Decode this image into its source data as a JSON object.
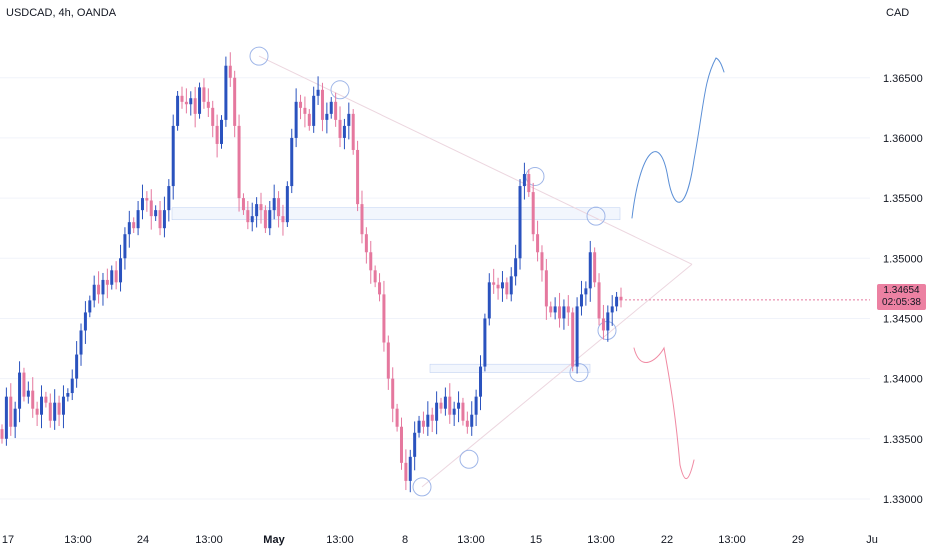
{
  "header": {
    "symbol": "USDCAD, 4h, OANDA",
    "currency": "CAD"
  },
  "price_tag": {
    "price": "1.34654",
    "countdown": "02:05:38"
  },
  "colors": {
    "up": "#2a52be",
    "down": "#e5789e",
    "grid": "#f0f3fa",
    "text": "#131722",
    "price_tag_bg": "#ec81a2",
    "projection_up": "#5b8fd6",
    "projection_down": "#f08aa3"
  },
  "chart_data": {
    "type": "candlestick",
    "title": "USDCAD, 4h, OANDA",
    "xlabel": "",
    "ylabel": "",
    "ylim": [
      1.3285,
      1.3698
    ],
    "grid": false,
    "y_ticks": [
      "1.36500",
      "1.36000",
      "1.35500",
      "1.35000",
      "1.34500",
      "1.34000",
      "1.33500",
      "1.33000"
    ],
    "x_ticks": [
      "17",
      "13:00",
      "24",
      "13:00",
      "May",
      "13:00",
      "8",
      "13:00",
      "15",
      "13:00",
      "22",
      "13:00",
      "29",
      "Ju"
    ],
    "last_price": 1.34654,
    "closes": [
      1.335,
      1.3385,
      1.336,
      1.3375,
      1.3405,
      1.3385,
      1.339,
      1.3375,
      1.337,
      1.3385,
      1.338,
      1.3365,
      1.338,
      1.337,
      1.3385,
      1.3388,
      1.34,
      1.342,
      1.344,
      1.3455,
      1.3465,
      1.3478,
      1.347,
      1.3482,
      1.3478,
      1.349,
      1.348,
      1.35,
      1.352,
      1.353,
      1.3525,
      1.354,
      1.355,
      1.3548,
      1.3535,
      1.354,
      1.3525,
      1.354,
      1.356,
      1.361,
      1.3635,
      1.363,
      1.3628,
      1.3633,
      1.362,
      1.3642,
      1.363,
      1.3625,
      1.361,
      1.3595,
      1.3615,
      1.366,
      1.365,
      1.361,
      1.355,
      1.354,
      1.353,
      1.3535,
      1.3545,
      1.354,
      1.3525,
      1.354,
      1.355,
      1.3535,
      1.353,
      1.356,
      1.36,
      1.363,
      1.3625,
      1.362,
      1.361,
      1.3635,
      1.364,
      1.3615,
      1.362,
      1.363,
      1.3615,
      1.36,
      1.361,
      1.362,
      1.359,
      1.3545,
      1.352,
      1.3505,
      1.349,
      1.348,
      1.347,
      1.343,
      1.34,
      1.3375,
      1.336,
      1.333,
      1.3315,
      1.3335,
      1.3355,
      1.3365,
      1.336,
      1.337,
      1.3365,
      1.338,
      1.3375,
      1.3385,
      1.337,
      1.3375,
      1.338,
      1.3365,
      1.336,
      1.337,
      1.3385,
      1.341,
      1.345,
      1.348,
      1.3478,
      1.3475,
      1.348,
      1.347,
      1.3485,
      1.35,
      1.356,
      1.357,
      1.3555,
      1.352,
      1.3505,
      1.349,
      1.346,
      1.3455,
      1.346,
      1.345,
      1.346,
      1.3455,
      1.341,
      1.346,
      1.347,
      1.3475,
      1.3505,
      1.348,
      1.345,
      1.344,
      1.3455,
      1.346,
      1.3468,
      1.3465
    ],
    "annotations": {
      "resistance_zone": [
        1.3532,
        1.3542
      ],
      "support_zone": [
        1.3405,
        1.3412
      ]
    }
  }
}
